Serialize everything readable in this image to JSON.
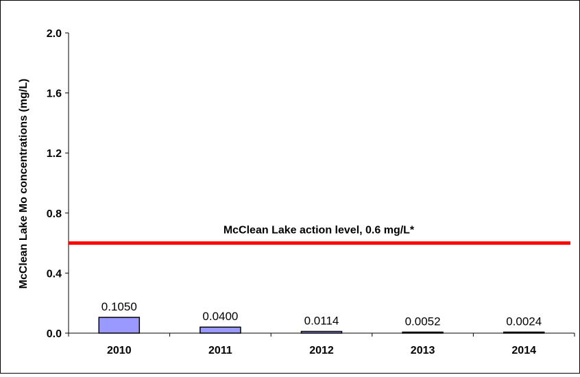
{
  "chart_data": {
    "type": "bar",
    "categories": [
      "2010",
      "2011",
      "2012",
      "2013",
      "2014"
    ],
    "values": [
      0.105,
      0.04,
      0.0114,
      0.0052,
      0.0024
    ],
    "data_labels": [
      "0.1050",
      "0.0400",
      "0.0114",
      "0.0052",
      "0.0024"
    ],
    "title": "",
    "xlabel": "",
    "ylabel": "McClean Lake Mo concentrations (mg/L)",
    "ylim": [
      0,
      2.0
    ],
    "yticks": [
      0.0,
      0.4,
      0.8,
      1.2,
      1.6,
      2.0
    ],
    "ytick_labels": [
      "0.0",
      "0.4",
      "0.8",
      "1.2",
      "1.6",
      "2.0"
    ],
    "grid": false,
    "legend": "none",
    "bar_color": "#9999ff",
    "reference_line": {
      "value": 0.6,
      "label": "McClean Lake action level, 0.6 mg/L*",
      "color": "#ff0000"
    }
  }
}
